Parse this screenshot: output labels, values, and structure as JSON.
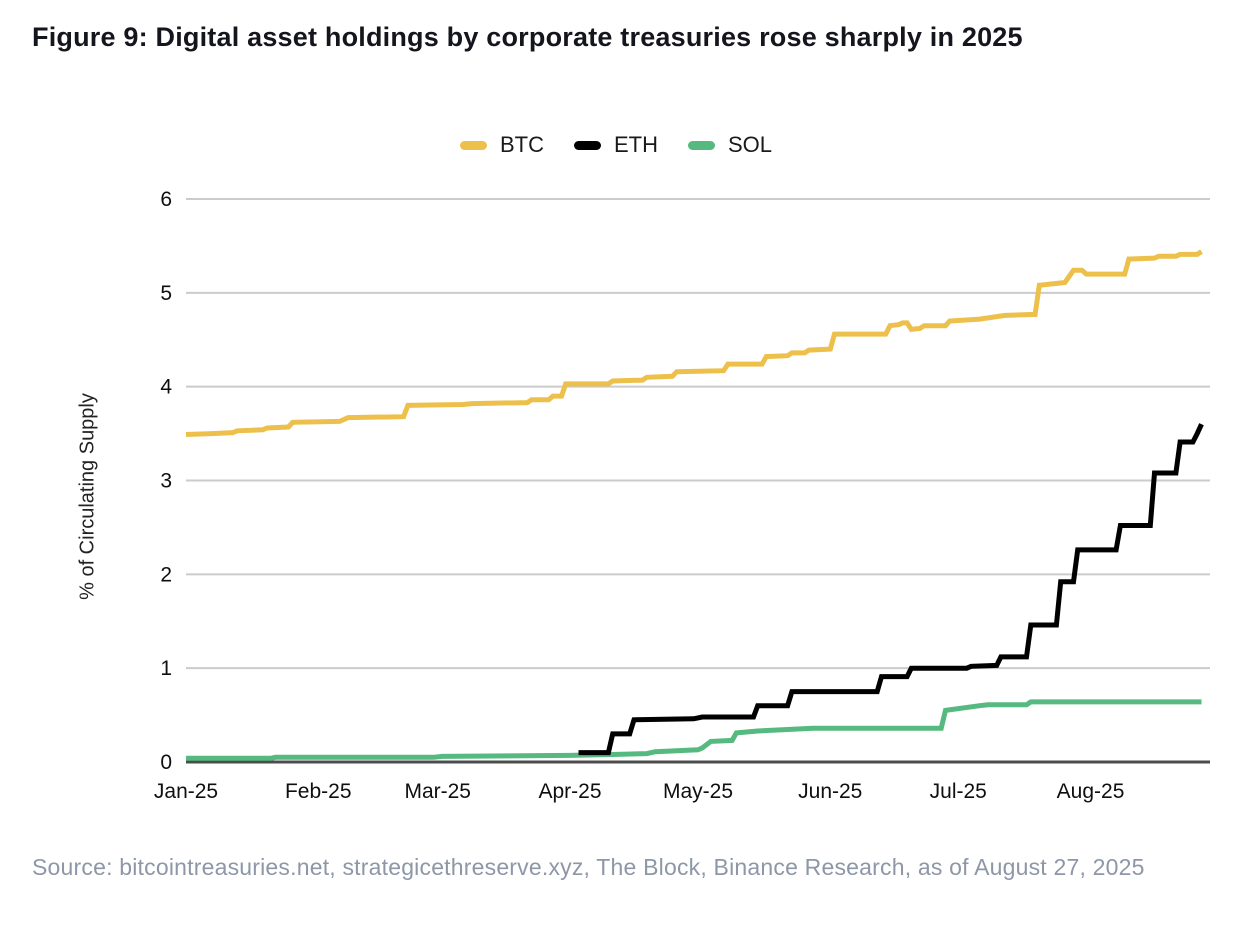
{
  "figure": {
    "title": "Figure 9: Digital asset holdings by corporate treasuries rose sharply in 2025",
    "source": "Source: bitcointreasuries.net, strategicethreserve.xyz, The Block, Binance Research, as of August 27, 2025"
  },
  "chart_data": {
    "type": "line",
    "title": "Digital asset holdings by corporate treasuries as % of circulating supply, 2025",
    "xlabel": "",
    "ylabel": "% of Circulating Supply",
    "ylim": [
      0,
      6
    ],
    "yticks": [
      0,
      1,
      2,
      3,
      4,
      5,
      6
    ],
    "x_unit": "days since 2025-01-01",
    "xlim": [
      0,
      240
    ],
    "xticks": [
      {
        "label": "Jan-25",
        "day": 0
      },
      {
        "label": "Feb-25",
        "day": 31
      },
      {
        "label": "Mar-25",
        "day": 59
      },
      {
        "label": "Apr-25",
        "day": 90
      },
      {
        "label": "May-25",
        "day": 120
      },
      {
        "label": "Jun-25",
        "day": 151
      },
      {
        "label": "Jul-25",
        "day": 181
      },
      {
        "label": "Aug-25",
        "day": 212
      }
    ],
    "grid": "horizontal",
    "legend_position": "top-center",
    "style": {
      "gridline_color": "#cbcbcb",
      "zero_line_color": "#4d4d4d",
      "tick_label_color": "#0f0f0f",
      "line_width": 5
    },
    "series": [
      {
        "name": "BTC",
        "color": "#edc04b",
        "points": [
          [
            0,
            3.49
          ],
          [
            6,
            3.5
          ],
          [
            11,
            3.51
          ],
          [
            12,
            3.53
          ],
          [
            18,
            3.54
          ],
          [
            19,
            3.56
          ],
          [
            24,
            3.57
          ],
          [
            25,
            3.62
          ],
          [
            36,
            3.63
          ],
          [
            38,
            3.67
          ],
          [
            51,
            3.68
          ],
          [
            52,
            3.8
          ],
          [
            65,
            3.81
          ],
          [
            67,
            3.82
          ],
          [
            80,
            3.83
          ],
          [
            81,
            3.86
          ],
          [
            85,
            3.86
          ],
          [
            86,
            3.9
          ],
          [
            88,
            3.9
          ],
          [
            89,
            4.03
          ],
          [
            99,
            4.03
          ],
          [
            100,
            4.06
          ],
          [
            107,
            4.07
          ],
          [
            108,
            4.1
          ],
          [
            114,
            4.11
          ],
          [
            115,
            4.16
          ],
          [
            126,
            4.17
          ],
          [
            127,
            4.24
          ],
          [
            135,
            4.24
          ],
          [
            136,
            4.32
          ],
          [
            141,
            4.33
          ],
          [
            142,
            4.36
          ],
          [
            145,
            4.36
          ],
          [
            146,
            4.39
          ],
          [
            151,
            4.4
          ],
          [
            152,
            4.56
          ],
          [
            164,
            4.56
          ],
          [
            165,
            4.65
          ],
          [
            167,
            4.66
          ],
          [
            168,
            4.68
          ],
          [
            169,
            4.68
          ],
          [
            170,
            4.61
          ],
          [
            172,
            4.62
          ],
          [
            173,
            4.65
          ],
          [
            178,
            4.65
          ],
          [
            179,
            4.7
          ],
          [
            186,
            4.72
          ],
          [
            192,
            4.76
          ],
          [
            199,
            4.77
          ],
          [
            200,
            5.08
          ],
          [
            206,
            5.11
          ],
          [
            208,
            5.24
          ],
          [
            210,
            5.24
          ],
          [
            211,
            5.2
          ],
          [
            220,
            5.2
          ],
          [
            221,
            5.36
          ],
          [
            227,
            5.37
          ],
          [
            228,
            5.39
          ],
          [
            232,
            5.39
          ],
          [
            233,
            5.41
          ],
          [
            237,
            5.41
          ],
          [
            238,
            5.44
          ]
        ]
      },
      {
        "name": "ETH",
        "color": "#000000",
        "points": [
          [
            92,
            0.1
          ],
          [
            99,
            0.1
          ],
          [
            100,
            0.3
          ],
          [
            104,
            0.3
          ],
          [
            105,
            0.45
          ],
          [
            119,
            0.46
          ],
          [
            121,
            0.48
          ],
          [
            133,
            0.48
          ],
          [
            134,
            0.6
          ],
          [
            141,
            0.6
          ],
          [
            142,
            0.75
          ],
          [
            162,
            0.75
          ],
          [
            163,
            0.91
          ],
          [
            169,
            0.91
          ],
          [
            170,
            1.0
          ],
          [
            183,
            1.0
          ],
          [
            184,
            1.02
          ],
          [
            190,
            1.03
          ],
          [
            191,
            1.12
          ],
          [
            197,
            1.12
          ],
          [
            198,
            1.46
          ],
          [
            204,
            1.46
          ],
          [
            205,
            1.92
          ],
          [
            208,
            1.92
          ],
          [
            209,
            2.26
          ],
          [
            218,
            2.26
          ],
          [
            219,
            2.52
          ],
          [
            226,
            2.52
          ],
          [
            227,
            3.08
          ],
          [
            232,
            3.08
          ],
          [
            233,
            3.41
          ],
          [
            236,
            3.41
          ],
          [
            237,
            3.5
          ],
          [
            238,
            3.6
          ]
        ]
      },
      {
        "name": "SOL",
        "color": "#55b980",
        "points": [
          [
            0,
            0.04
          ],
          [
            20,
            0.04
          ],
          [
            21,
            0.05
          ],
          [
            58,
            0.05
          ],
          [
            60,
            0.06
          ],
          [
            90,
            0.07
          ],
          [
            100,
            0.08
          ],
          [
            108,
            0.09
          ],
          [
            110,
            0.11
          ],
          [
            120,
            0.13
          ],
          [
            121,
            0.15
          ],
          [
            123,
            0.22
          ],
          [
            128,
            0.23
          ],
          [
            129,
            0.31
          ],
          [
            134,
            0.33
          ],
          [
            147,
            0.36
          ],
          [
            177,
            0.36
          ],
          [
            178,
            0.55
          ],
          [
            186,
            0.6
          ],
          [
            188,
            0.61
          ],
          [
            197,
            0.61
          ],
          [
            198,
            0.64
          ],
          [
            238,
            0.64
          ]
        ]
      }
    ]
  }
}
